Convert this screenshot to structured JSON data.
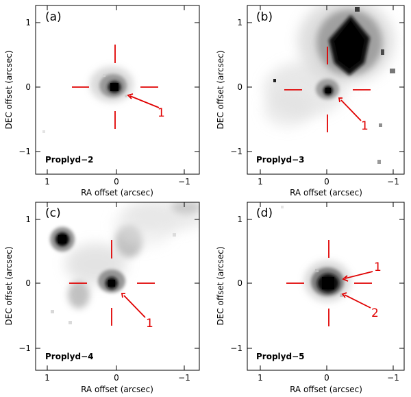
{
  "figure": {
    "axis_labels": {
      "x": "RA offset (arcsec)",
      "y": "DEC offset (arcsec)"
    },
    "ticks": {
      "x": [
        {
          "value": 1,
          "label": "1"
        },
        {
          "value": 0,
          "label": "0"
        },
        {
          "value": -1,
          "label": "−1"
        }
      ],
      "y": [
        {
          "value": 1,
          "label": "1"
        },
        {
          "value": 0,
          "label": "0"
        },
        {
          "value": -1,
          "label": "−1"
        }
      ]
    },
    "colors": {
      "marker": "#e00000",
      "axis": "#000000",
      "background": "#ffffff"
    },
    "panels": [
      {
        "letter": "(a)",
        "name": "Proplyd−2",
        "arrows": [
          {
            "label": "1"
          }
        ]
      },
      {
        "letter": "(b)",
        "name": "Proplyd−3",
        "arrows": [
          {
            "label": "1"
          }
        ]
      },
      {
        "letter": "(c)",
        "name": "Proplyd−4",
        "arrows": [
          {
            "label": "1"
          }
        ]
      },
      {
        "letter": "(d)",
        "name": "Proplyd−5",
        "arrows": [
          {
            "label": "1"
          },
          {
            "label": "2"
          }
        ]
      }
    ]
  }
}
